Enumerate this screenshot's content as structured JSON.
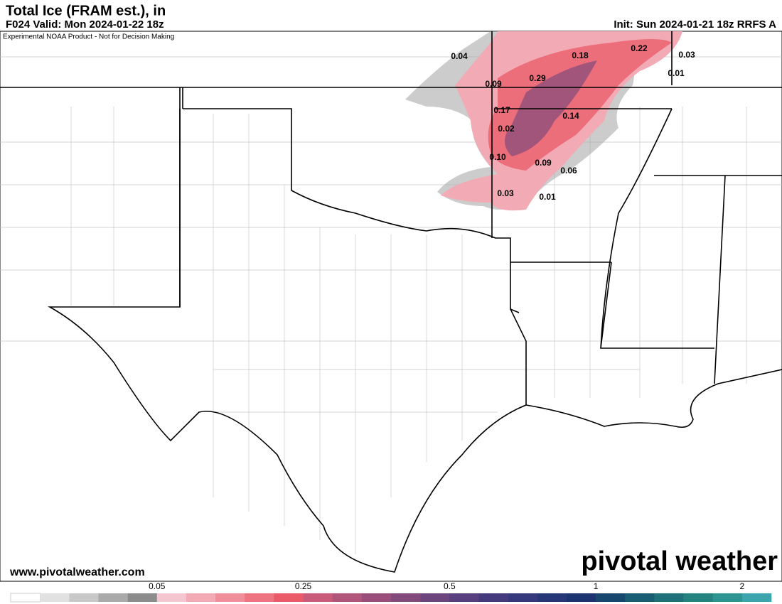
{
  "header": {
    "title": "Total Ice (FRAM est.), in",
    "valid": "F024 Valid: Mon 2024-01-22 18z",
    "init": "Init: Sun 2024-01-21 18z RRFS A",
    "disclaimer": "Experimental NOAA Product - Not for Decision Making"
  },
  "map": {
    "point_labels": [
      "0.04",
      "0.18",
      "0.22",
      "0.03",
      "0.09",
      "0.29",
      "0.01",
      "0.17",
      "0.14",
      "0.02",
      "0.10",
      "0.09",
      "0.06",
      "0.03",
      "0.01"
    ]
  },
  "footer": {
    "website": "www.pivotalweather.com",
    "logo": "pivotal weather"
  },
  "colorbar": {
    "colors": [
      "#ffffff",
      "#e1e1e1",
      "#c8c8c8",
      "#aaaaaa",
      "#8c8c8c",
      "#f4c6cf",
      "#f2aab5",
      "#f08f9b",
      "#ee7482",
      "#ea5a68",
      "#c85c7a",
      "#b0567a",
      "#9a4f7b",
      "#834a7c",
      "#6c457d",
      "#583f7d",
      "#443a7c",
      "#35387a",
      "#273676",
      "#1b3470",
      "#17476c",
      "#1a5d73",
      "#1f7079",
      "#24827f",
      "#2d9491",
      "#3ba4ac"
    ],
    "ticks": [
      0.05,
      0.25,
      0.5,
      1,
      2
    ]
  }
}
